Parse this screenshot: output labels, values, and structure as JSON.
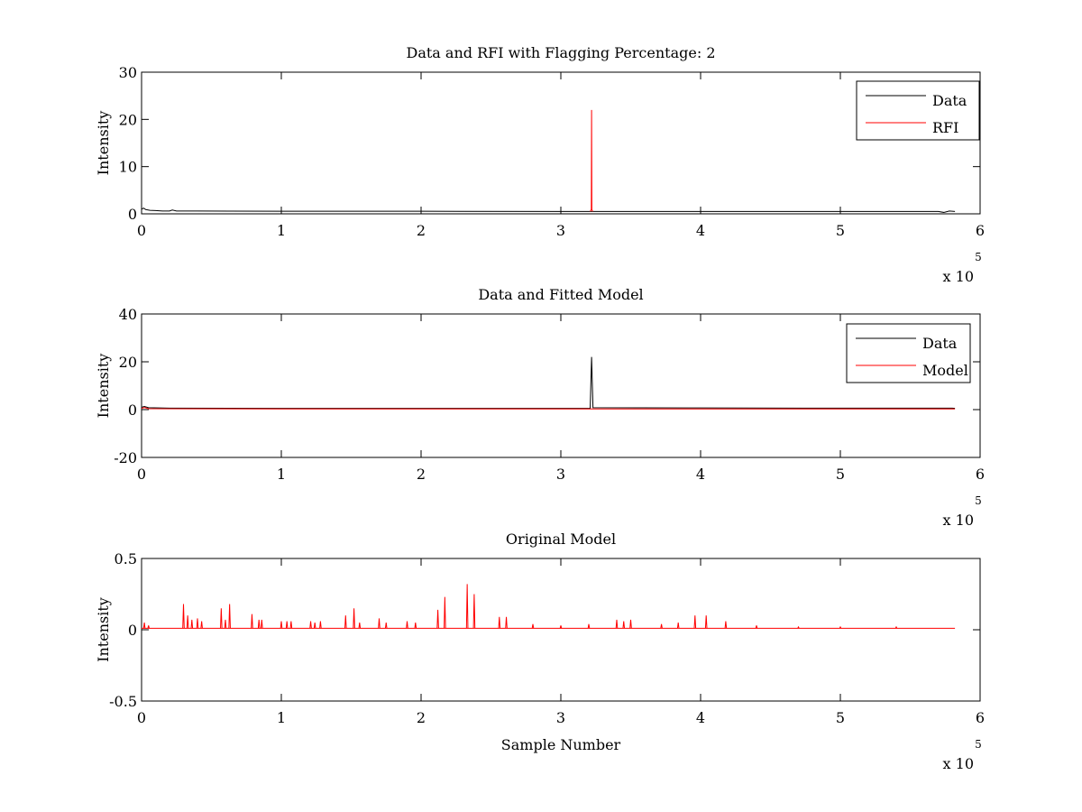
{
  "chart_data": [
    {
      "type": "line",
      "title": "Data and RFI with Flagging Percentage: 2",
      "xlabel": "",
      "ylabel": "Intensity",
      "xlim": [
        0,
        600000
      ],
      "ylim": [
        0,
        30
      ],
      "x_ticks": [
        0,
        100000,
        200000,
        300000,
        400000,
        500000,
        600000
      ],
      "x_tick_labels": [
        "0",
        "1",
        "2",
        "3",
        "4",
        "5",
        "6"
      ],
      "x_multiplier": {
        "base": "x 10",
        "exponent": "5"
      },
      "y_ticks": [
        0,
        10,
        20,
        30
      ],
      "y_tick_labels": [
        "0",
        "10",
        "20",
        "30"
      ],
      "legend": {
        "placement": "top-right"
      },
      "series": [
        {
          "name": "Data",
          "color": "#000000",
          "points": [
            [
              0,
              1.0
            ],
            [
              1500,
              1.2
            ],
            [
              3000,
              0.9
            ],
            [
              6000,
              0.75
            ],
            [
              10000,
              0.7
            ],
            [
              15000,
              0.6
            ],
            [
              20000,
              0.6
            ],
            [
              22000,
              0.8
            ],
            [
              25000,
              0.6
            ],
            [
              40000,
              0.6
            ],
            [
              100000,
              0.55
            ],
            [
              200000,
              0.55
            ],
            [
              300000,
              0.5
            ],
            [
              321000,
              0.5
            ],
            [
              324000,
              0.5
            ],
            [
              400000,
              0.5
            ],
            [
              500000,
              0.5
            ],
            [
              570000,
              0.5
            ],
            [
              574000,
              0.3
            ],
            [
              578000,
              0.6
            ],
            [
              582000,
              0.5
            ]
          ]
        },
        {
          "name": "RFI",
          "color": "#ff0000",
          "points": [
            [
              321000,
              0.5
            ],
            [
              321800,
              0.9
            ],
            [
              322000,
              22.0
            ],
            [
              322200,
              0.9
            ],
            [
              322800,
              0.5
            ]
          ]
        }
      ]
    },
    {
      "type": "line",
      "title": "Data and Fitted Model",
      "xlabel": "",
      "ylabel": "Intensity",
      "xlim": [
        0,
        600000
      ],
      "ylim": [
        -20,
        40
      ],
      "x_ticks": [
        0,
        100000,
        200000,
        300000,
        400000,
        500000,
        600000
      ],
      "x_tick_labels": [
        "0",
        "1",
        "2",
        "3",
        "4",
        "5",
        "6"
      ],
      "x_multiplier": {
        "base": "x 10",
        "exponent": "5"
      },
      "y_ticks": [
        -20,
        0,
        20,
        40
      ],
      "y_tick_labels": [
        "-20",
        "0",
        "20",
        "40"
      ],
      "legend": {
        "placement": "top-right"
      },
      "series": [
        {
          "name": "Data",
          "color": "#000000",
          "points": [
            [
              0,
              1.0
            ],
            [
              2000,
              1.3
            ],
            [
              5000,
              0.8
            ],
            [
              20000,
              0.6
            ],
            [
              100000,
              0.5
            ],
            [
              200000,
              0.5
            ],
            [
              321000,
              0.5
            ],
            [
              322000,
              22.0
            ],
            [
              323000,
              0.8
            ],
            [
              400000,
              0.7
            ],
            [
              500000,
              0.6
            ],
            [
              560000,
              0.6
            ],
            [
              580000,
              0.6
            ],
            [
              582000,
              0.5
            ]
          ]
        },
        {
          "name": "Model",
          "color": "#ff0000",
          "points": [
            [
              0,
              0.5
            ],
            [
              2000,
              0.9
            ],
            [
              5000,
              0.4
            ],
            [
              100000,
              0.3
            ],
            [
              200000,
              0.3
            ],
            [
              300000,
              0.3
            ],
            [
              400000,
              0.3
            ],
            [
              500000,
              0.3
            ],
            [
              582000,
              0.3
            ]
          ]
        }
      ]
    },
    {
      "type": "line",
      "title": "Original Model",
      "xlabel": "Sample Number",
      "ylabel": "Intensity",
      "xlim": [
        0,
        600000
      ],
      "ylim": [
        -0.5,
        0.5
      ],
      "x_ticks": [
        0,
        100000,
        200000,
        300000,
        400000,
        500000,
        600000
      ],
      "x_tick_labels": [
        "0",
        "1",
        "2",
        "3",
        "4",
        "5",
        "6"
      ],
      "x_multiplier": {
        "base": "x 10",
        "exponent": "5"
      },
      "y_ticks": [
        -0.5,
        0,
        0.5
      ],
      "y_tick_labels": [
        "-0.5",
        "0",
        "0.5"
      ],
      "series": [
        {
          "name": "",
          "color": "#ff0000",
          "baseline": 0.01,
          "x_end": 582000,
          "spikes": [
            [
              2000,
              0.05
            ],
            [
              5000,
              0.03
            ],
            [
              30000,
              0.18
            ],
            [
              33000,
              0.1
            ],
            [
              36000,
              0.07
            ],
            [
              40000,
              0.08
            ],
            [
              43000,
              0.06
            ],
            [
              57000,
              0.15
            ],
            [
              60000,
              0.07
            ],
            [
              63000,
              0.18
            ],
            [
              79000,
              0.11
            ],
            [
              84000,
              0.07
            ],
            [
              86000,
              0.07
            ],
            [
              100000,
              0.06
            ],
            [
              104000,
              0.06
            ],
            [
              107000,
              0.06
            ],
            [
              121000,
              0.06
            ],
            [
              124000,
              0.05
            ],
            [
              128000,
              0.06
            ],
            [
              146000,
              0.1
            ],
            [
              152000,
              0.15
            ],
            [
              156000,
              0.05
            ],
            [
              170000,
              0.08
            ],
            [
              175000,
              0.05
            ],
            [
              190000,
              0.06
            ],
            [
              196000,
              0.05
            ],
            [
              212000,
              0.14
            ],
            [
              217000,
              0.23
            ],
            [
              233000,
              0.32
            ],
            [
              238000,
              0.25
            ],
            [
              256000,
              0.09
            ],
            [
              261000,
              0.09
            ],
            [
              280000,
              0.04
            ],
            [
              300000,
              0.03
            ],
            [
              320000,
              0.04
            ],
            [
              340000,
              0.07
            ],
            [
              345000,
              0.06
            ],
            [
              350000,
              0.07
            ],
            [
              372000,
              0.04
            ],
            [
              384000,
              0.05
            ],
            [
              396000,
              0.1
            ],
            [
              404000,
              0.1
            ],
            [
              418000,
              0.06
            ],
            [
              440000,
              0.03
            ],
            [
              470000,
              0.02
            ],
            [
              500000,
              0.02
            ],
            [
              540000,
              0.02
            ]
          ]
        }
      ]
    }
  ]
}
